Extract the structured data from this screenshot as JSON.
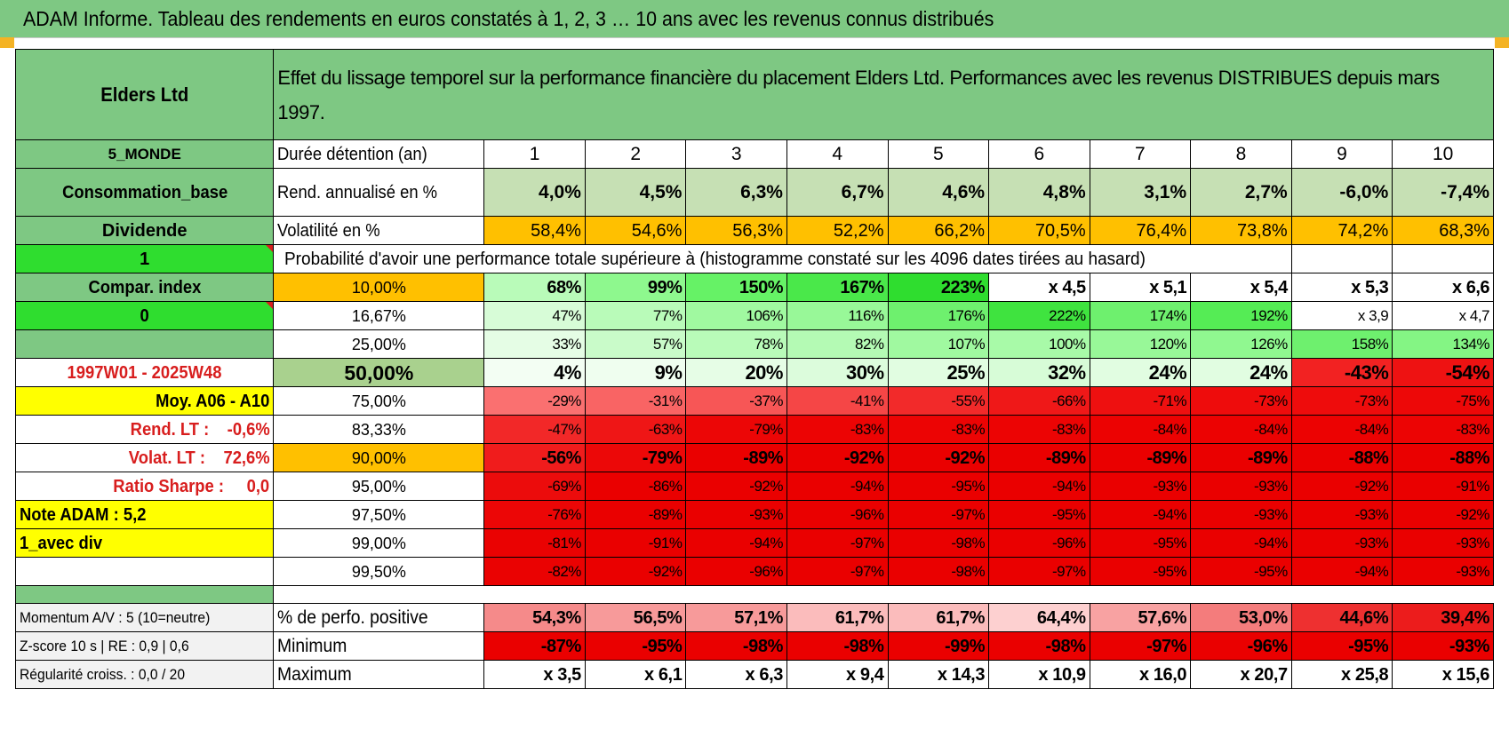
{
  "title": "ADAM Informe. Tableau des rendements en euros constatés à 1, 2, 3 … 10 ans avec les revenus connus distribués",
  "colors": {
    "banner": "#7ec883",
    "label_green": "#7ec883",
    "bright_green": "#2fdd2f",
    "yellow": "#ffff00",
    "orange": "#ffc000",
    "red_text": "#d81e1e"
  },
  "fund_name": "Elders Ltd",
  "description": "Effet du lissage temporel sur la performance financière du placement Elders Ltd. Performances avec les revenus DISTRIBUES depuis mars 1997.",
  "side": {
    "monde": "5_MONDE",
    "consommation": "Consommation_base",
    "dividende": "Dividende",
    "one": "1",
    "compar": "Compar. index",
    "zero": "0",
    "period": "1997W01 - 2025W48",
    "moy": "Moy. A06 - A10",
    "rend_lt": "Rend. LT :    -0,6%",
    "volat_lt": "Volat. LT :    72,6%",
    "sharpe": "Ratio Sharpe :     0,0",
    "note": "Note ADAM : 5,2",
    "avec_div": "1_avec div",
    "momentum": "Momentum A/V : 5 (10=neutre)",
    "zscore": "Z-score 10 s | RE : 0,9 | 0,6",
    "regularite": "Régularité croiss. : 0,0 / 20"
  },
  "header_row": {
    "label": "Durée détention (an)",
    "years": [
      "1",
      "2",
      "3",
      "4",
      "5",
      "6",
      "7",
      "8",
      "9",
      "10"
    ]
  },
  "rend": {
    "label": "Rend. annualisé en %",
    "values": [
      "4,0%",
      "4,5%",
      "6,3%",
      "6,7%",
      "4,6%",
      "4,8%",
      "3,1%",
      "2,7%",
      "-6,0%",
      "-7,4%"
    ]
  },
  "volat": {
    "label": "Volatilité en %",
    "values": [
      "58,4%",
      "54,6%",
      "56,3%",
      "52,2%",
      "66,2%",
      "70,5%",
      "76,4%",
      "73,8%",
      "74,2%",
      "68,3%"
    ]
  },
  "prob_caption": "Probabilité d'avoir une performance totale supérieure à (histogramme constaté sur les 4096 dates tirées au hasard)",
  "quantiles": [
    {
      "pct": "10,00%",
      "values": [
        "68%",
        "99%",
        "150%",
        "167%",
        "223%",
        "x 4,5",
        "x 5,1",
        "x 5,4",
        "x 5,3",
        "x 6,6"
      ]
    },
    {
      "pct": "16,67%",
      "values": [
        "47%",
        "77%",
        "106%",
        "116%",
        "176%",
        "222%",
        "174%",
        "192%",
        "x 3,9",
        "x 4,7"
      ]
    },
    {
      "pct": "25,00%",
      "values": [
        "33%",
        "57%",
        "78%",
        "82%",
        "107%",
        "100%",
        "120%",
        "126%",
        "158%",
        "134%"
      ]
    },
    {
      "pct": "50,00%",
      "values": [
        "4%",
        "9%",
        "20%",
        "30%",
        "25%",
        "32%",
        "24%",
        "24%",
        "-43%",
        "-54%"
      ]
    },
    {
      "pct": "75,00%",
      "values": [
        "-29%",
        "-31%",
        "-37%",
        "-41%",
        "-55%",
        "-66%",
        "-71%",
        "-73%",
        "-73%",
        "-75%"
      ]
    },
    {
      "pct": "83,33%",
      "values": [
        "-47%",
        "-63%",
        "-79%",
        "-83%",
        "-83%",
        "-83%",
        "-84%",
        "-84%",
        "-84%",
        "-83%"
      ]
    },
    {
      "pct": "90,00%",
      "values": [
        "-56%",
        "-79%",
        "-89%",
        "-92%",
        "-92%",
        "-89%",
        "-89%",
        "-89%",
        "-88%",
        "-88%"
      ]
    },
    {
      "pct": "95,00%",
      "values": [
        "-69%",
        "-86%",
        "-92%",
        "-94%",
        "-95%",
        "-94%",
        "-93%",
        "-93%",
        "-92%",
        "-91%"
      ]
    },
    {
      "pct": "97,50%",
      "values": [
        "-76%",
        "-89%",
        "-93%",
        "-96%",
        "-97%",
        "-95%",
        "-94%",
        "-93%",
        "-93%",
        "-92%"
      ]
    },
    {
      "pct": "99,00%",
      "values": [
        "-81%",
        "-91%",
        "-94%",
        "-97%",
        "-98%",
        "-96%",
        "-95%",
        "-94%",
        "-93%",
        "-93%"
      ]
    },
    {
      "pct": "99,50%",
      "values": [
        "-82%",
        "-92%",
        "-96%",
        "-97%",
        "-98%",
        "-97%",
        "-95%",
        "-95%",
        "-94%",
        "-93%"
      ]
    }
  ],
  "positive": {
    "label": "% de perfo. positive",
    "values": [
      "54,3%",
      "56,5%",
      "57,1%",
      "61,7%",
      "61,7%",
      "64,4%",
      "57,6%",
      "53,0%",
      "44,6%",
      "39,4%"
    ]
  },
  "minimum": {
    "label": "Minimum",
    "values": [
      "-87%",
      "-95%",
      "-98%",
      "-98%",
      "-99%",
      "-98%",
      "-97%",
      "-96%",
      "-95%",
      "-93%"
    ]
  },
  "maximum": {
    "label": "Maximum",
    "values": [
      "x 3,5",
      "x 6,1",
      "x 6,3",
      "x 9,4",
      "x 14,3",
      "x 10,9",
      "x 16,0",
      "x 20,7",
      "x 25,8",
      "x 15,6"
    ]
  },
  "cell_colors": {
    "rend": [
      "#c6e0b4",
      "#c6e0b4",
      "#c6e0b4",
      "#c6e0b4",
      "#c6e0b4",
      "#c6e0b4",
      "#c6e0b4",
      "#c6e0b4",
      "#c6e0b4",
      "#c6e0b4"
    ],
    "volat": [
      "#ffc000",
      "#ffc000",
      "#ffc000",
      "#ffc000",
      "#ffc000",
      "#ffc000",
      "#ffc000",
      "#ffc000",
      "#ffc000",
      "#ffc000"
    ],
    "quantiles": [
      [
        "#b9fbb9",
        "#8ef88e",
        "#66f266",
        "#4ae84a",
        "#2fdd2f",
        "#ffffff",
        "#ffffff",
        "#ffffff",
        "#ffffff",
        "#ffffff"
      ],
      [
        "#d7fcd7",
        "#b9fbb9",
        "#a0f9a0",
        "#98f898",
        "#6ef06e",
        "#3fe33f",
        "#6ef06e",
        "#55ec55",
        "#ffffff",
        "#ffffff"
      ],
      [
        "#e5fde5",
        "#c9fbc9",
        "#b9fbb9",
        "#b4fab4",
        "#a0f9a0",
        "#a8faa8",
        "#98f898",
        "#90f890",
        "#6ef06e",
        "#84f584"
      ],
      [
        "#f3fef3",
        "#effeef",
        "#e6fde6",
        "#dcfcdc",
        "#e1fde1",
        "#d7fcd7",
        "#e1fde1",
        "#e1fde1",
        "#f22222",
        "#ee1212"
      ],
      [
        "#fa7070",
        "#f96464",
        "#f75656",
        "#f54646",
        "#f22a2a",
        "#ef1818",
        "#ee1010",
        "#ee0c0c",
        "#ee0c0c",
        "#ed0808"
      ],
      [
        "#f22828",
        "#ef1616",
        "#ec0606",
        "#ec0404",
        "#ec0404",
        "#ec0404",
        "#ec0202",
        "#ec0202",
        "#ec0202",
        "#ec0404"
      ],
      [
        "#f01c1c",
        "#ec0808",
        "#ea0000",
        "#ea0000",
        "#ea0000",
        "#ea0000",
        "#ea0000",
        "#ea0000",
        "#ea0000",
        "#ea0000"
      ],
      [
        "#ec0c0c",
        "#ea0000",
        "#ea0000",
        "#ea0000",
        "#ea0000",
        "#ea0000",
        "#ea0000",
        "#ea0000",
        "#ea0000",
        "#ea0000"
      ],
      [
        "#ec0606",
        "#ea0000",
        "#ea0000",
        "#ea0000",
        "#ea0000",
        "#ea0000",
        "#ea0000",
        "#ea0000",
        "#ea0000",
        "#ea0000"
      ],
      [
        "#ea0202",
        "#ea0000",
        "#ea0000",
        "#ea0000",
        "#ea0000",
        "#ea0000",
        "#ea0000",
        "#ea0000",
        "#ea0000",
        "#ea0000"
      ],
      [
        "#ea0202",
        "#ea0000",
        "#ea0000",
        "#ea0000",
        "#ea0000",
        "#ea0000",
        "#ea0000",
        "#ea0000",
        "#ea0000",
        "#ea0000"
      ]
    ],
    "positive": [
      "#f58a8a",
      "#f79a9a",
      "#f79a9a",
      "#fbbcbc",
      "#fbbcbc",
      "#fdd0d0",
      "#f8a2a2",
      "#f47c7c",
      "#ee3030",
      "#ec1c1c"
    ],
    "minimum": [
      "#ea0000",
      "#ea0000",
      "#ea0000",
      "#ea0000",
      "#ea0000",
      "#ea0000",
      "#ea0000",
      "#ea0000",
      "#ea0000",
      "#ea0000"
    ],
    "maximum": [
      "#ffffff",
      "#ffffff",
      "#ffffff",
      "#ffffff",
      "#ffffff",
      "#ffffff",
      "#ffffff",
      "#ffffff",
      "#ffffff",
      "#ffffff"
    ]
  }
}
